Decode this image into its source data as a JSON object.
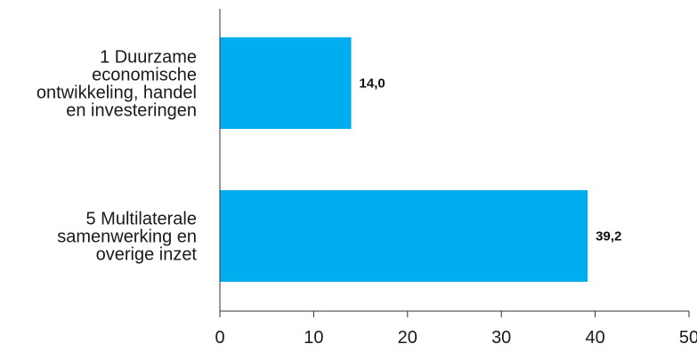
{
  "chart_data": {
    "type": "bar",
    "orientation": "horizontal",
    "categories": [
      [
        "1 Duurzame",
        "economische",
        "ontwikkeling, handel",
        "en investeringen"
      ],
      [
        "5 Multilaterale",
        "samenwerking en",
        "overige inzet"
      ]
    ],
    "values": [
      14.0,
      39.2
    ],
    "value_labels": [
      "14,0",
      "39,2"
    ],
    "x_ticks": [
      "0",
      "10",
      "20",
      "30",
      "40",
      "50"
    ],
    "xlim": [
      0,
      50
    ],
    "grid": false,
    "legend": "none",
    "bar_color": "#00aeef",
    "title": "",
    "xlabel": "",
    "ylabel": ""
  }
}
